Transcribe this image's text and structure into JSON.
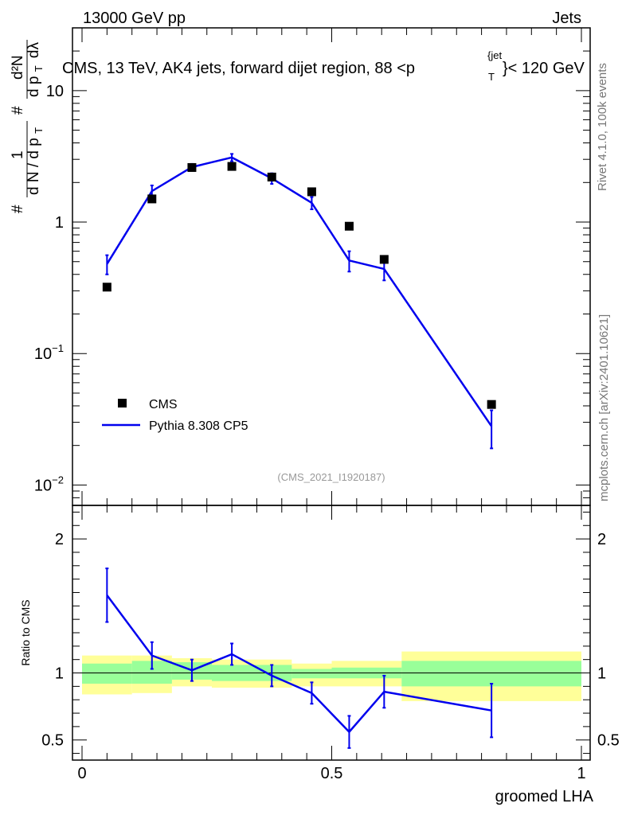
{
  "header": {
    "left": "13000 GeV pp",
    "right": "Jets"
  },
  "side_labels": {
    "rivet": "Rivet 4.1.0,  100k events",
    "mcplots": "mcplots.cern.ch [arXiv:2401.10621]"
  },
  "colors": {
    "mc_line": "#0000ee",
    "data_marker": "#000000",
    "band_inner": "#99ff99",
    "band_outer": "#ffff99",
    "watermark": "#999999",
    "side_label": "#777777"
  },
  "chart_data": {
    "type": "line",
    "title": {
      "main": "CMS, 13 TeV, AK4 jets, forward dijet region, 88 <p",
      "sup": "{jet",
      "sub": "T",
      "tail": "}< 120 GeV"
    },
    "watermark": "(CMS_2021_I1920187)",
    "xlabel": "groomed LHA",
    "ylabel_lower": "Ratio to CMS",
    "ylabel_upper": {
      "frac_left_num": "1",
      "frac_left_den": "d N / d p",
      "frac_left_den_sub": "T",
      "frac_right_num": "d²N",
      "frac_right_den": "d p",
      "frac_right_den_sub": "T",
      "frac_right_den_tail": "dλ",
      "hash": "#"
    },
    "xlim": [
      0,
      1
    ],
    "x_ticks": [
      {
        "value": 0,
        "label": "0"
      },
      {
        "value": 0.5,
        "label": "0.5"
      },
      {
        "value": 1,
        "label": "1"
      }
    ],
    "upper": {
      "yscale": "log",
      "ylim": [
        0.007,
        30
      ],
      "y_ticks": [
        {
          "value": 10,
          "label": "10",
          "exp": ""
        },
        {
          "value": 1,
          "label": "1",
          "exp": ""
        },
        {
          "value": 0.1,
          "label": "10",
          "exp": "−1"
        },
        {
          "value": 0.01,
          "label": "10",
          "exp": "−2"
        }
      ],
      "legend_position": "middle-left",
      "series": [
        {
          "name": "CMS",
          "kind": "markers",
          "x": [
            0.05,
            0.14,
            0.22,
            0.3,
            0.38,
            0.46,
            0.535,
            0.605,
            0.82
          ],
          "y": [
            0.32,
            1.5,
            2.6,
            2.65,
            2.2,
            1.7,
            0.93,
            0.52,
            0.041
          ]
        },
        {
          "name": "Pythia 8.308 CP5",
          "kind": "line",
          "x": [
            0.05,
            0.14,
            0.22,
            0.3,
            0.38,
            0.46,
            0.535,
            0.605,
            0.82
          ],
          "y": [
            0.48,
            1.72,
            2.62,
            3.1,
            2.15,
            1.4,
            0.51,
            0.44,
            0.028
          ],
          "err": [
            0.08,
            0.18,
            0.15,
            0.2,
            0.2,
            0.15,
            0.09,
            0.08,
            0.009
          ]
        }
      ]
    },
    "lower": {
      "ylim": [
        0.35,
        2.25
      ],
      "y_ticks": [
        {
          "value": 2,
          "label": "2"
        },
        {
          "value": 1,
          "label": "1"
        },
        {
          "value": 0.5,
          "label": "0.5"
        }
      ],
      "ref_line": 1.0,
      "bands": [
        {
          "x0": 0.0,
          "x1": 0.1,
          "inner": [
            0.92,
            1.07
          ],
          "outer": [
            0.84,
            1.13
          ]
        },
        {
          "x0": 0.1,
          "x1": 0.18,
          "inner": [
            0.92,
            1.09
          ],
          "outer": [
            0.85,
            1.13
          ]
        },
        {
          "x0": 0.18,
          "x1": 0.26,
          "inner": [
            0.95,
            1.08
          ],
          "outer": [
            0.9,
            1.11
          ]
        },
        {
          "x0": 0.26,
          "x1": 0.42,
          "inner": [
            0.94,
            1.06
          ],
          "outer": [
            0.89,
            1.1
          ]
        },
        {
          "x0": 0.42,
          "x1": 0.5,
          "inner": [
            0.96,
            1.03
          ],
          "outer": [
            0.9,
            1.07
          ]
        },
        {
          "x0": 0.5,
          "x1": 0.64,
          "inner": [
            0.96,
            1.04
          ],
          "outer": [
            0.9,
            1.09
          ]
        },
        {
          "x0": 0.64,
          "x1": 1.0,
          "inner": [
            0.9,
            1.09
          ],
          "outer": [
            0.79,
            1.16
          ]
        }
      ],
      "ratio_x": [
        0.05,
        0.14,
        0.22,
        0.3,
        0.38,
        0.46,
        0.535,
        0.605,
        0.82
      ],
      "ratio_y": [
        1.58,
        1.13,
        1.02,
        1.14,
        0.98,
        0.85,
        0.56,
        0.86,
        0.72
      ],
      "ratio_err": [
        0.2,
        0.1,
        0.08,
        0.08,
        0.08,
        0.08,
        0.12,
        0.12,
        0.2
      ]
    }
  }
}
